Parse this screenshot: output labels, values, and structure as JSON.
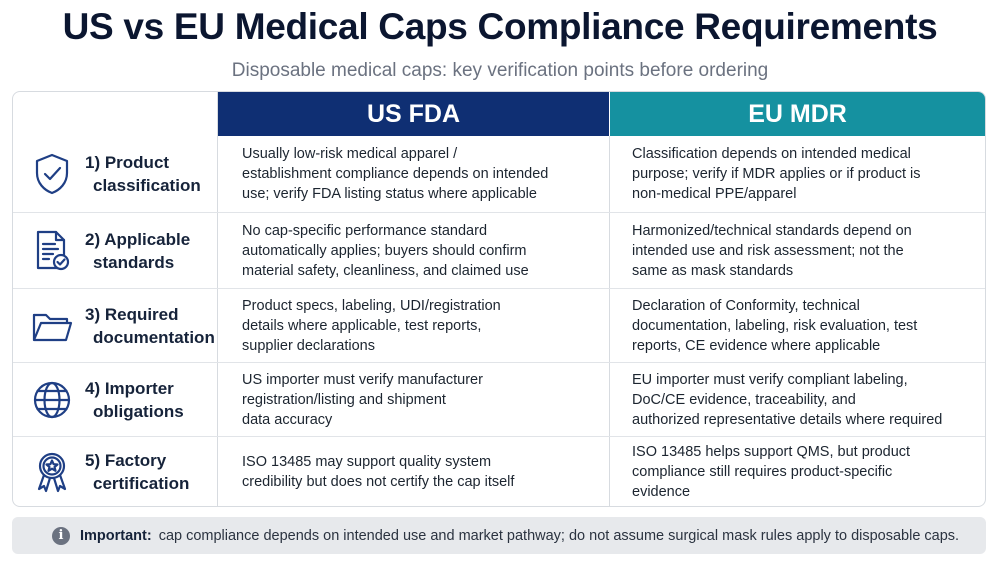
{
  "title": "US vs EU Medical Caps Compliance Requirements",
  "subtitle": "Disposable medical caps: key verification points before ordering",
  "columns": {
    "us": "US FDA",
    "eu": "EU MDR"
  },
  "colors": {
    "us_header": "#0f2f73",
    "eu_header": "#1591a0",
    "icon": "#1f3f85"
  },
  "rows": [
    {
      "icon": "shield-check-icon",
      "label": [
        "1) Product",
        "classification"
      ],
      "us": [
        "Usually low-risk medical apparel /",
        "establishment compliance depends on intended",
        "use; verify FDA listing status where applicable"
      ],
      "eu": [
        "Classification depends on intended medical",
        "purpose; verify if MDR applies or if product is",
        "non-medical PPE/apparel"
      ]
    },
    {
      "icon": "document-check-icon",
      "label": [
        "2) Applicable",
        "standards"
      ],
      "us": [
        "No cap-specific performance standard",
        "automatically applies; buyers should confirm",
        "material safety, cleanliness, and claimed use"
      ],
      "eu": [
        "Harmonized/technical standards depend on",
        "intended use and risk assessment; not the",
        "same as mask standards"
      ]
    },
    {
      "icon": "folder-icon",
      "label": [
        "3) Required",
        "documentation"
      ],
      "us": [
        "Product specs, labeling, UDI/registration",
        "details where applicable, test reports,",
        "supplier declarations"
      ],
      "eu": [
        "Declaration of Conformity, technical",
        "documentation, labeling, risk evaluation, test",
        "reports, CE evidence where applicable"
      ]
    },
    {
      "icon": "globe-icon",
      "label": [
        "4) Importer",
        "obligations"
      ],
      "us": [
        "US importer must verify manufacturer",
        "registration/listing and shipment",
        "data accuracy"
      ],
      "eu": [
        "EU importer must verify compliant labeling,",
        "DoC/CE evidence, traceability, and",
        "authorized representative details where required"
      ]
    },
    {
      "icon": "award-ribbon-icon",
      "label": [
        "5) Factory",
        "certification"
      ],
      "us": [
        "ISO 13485 may support quality system",
        "credibility but does not certify the cap itself"
      ],
      "eu": [
        "ISO 13485 helps support QMS, but product",
        "compliance still requires product-specific",
        "evidence"
      ]
    }
  ],
  "note": {
    "icon": "info-icon",
    "icon_glyph": "i",
    "strong": "Important:",
    "text": "cap compliance depends on intended use and market pathway; do not assume surgical mask rules apply to disposable caps."
  }
}
